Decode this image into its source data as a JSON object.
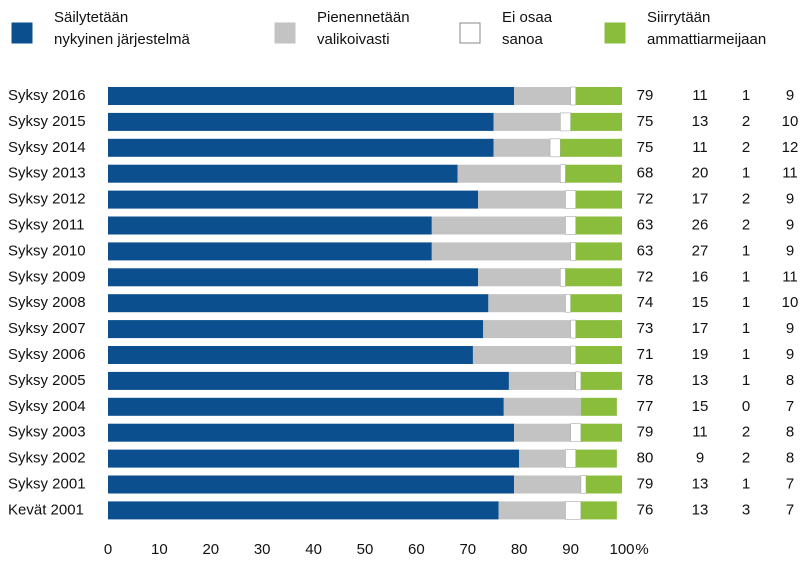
{
  "chart_data": {
    "type": "stacked_barh",
    "categories": [
      "Syksy 2016",
      "Syksy 2015",
      "Syksy 2014",
      "Syksy 2013",
      "Syksy 2012",
      "Syksy 2011",
      "Syksy 2010",
      "Syksy 2009",
      "Syksy 2008",
      "Syksy 2007",
      "Syksy 2006",
      "Syksy 2005",
      "Syksy 2004",
      "Syksy 2003",
      "Syksy 2002",
      "Syksy 2001",
      "Kevät 2001"
    ],
    "series": [
      {
        "name": [
          "Säilytetään",
          "nykyinen järjestelmä"
        ],
        "color": "#0b4f8e",
        "values": [
          79,
          75,
          75,
          68,
          72,
          63,
          63,
          72,
          74,
          73,
          71,
          78,
          77,
          79,
          80,
          79,
          76
        ]
      },
      {
        "name": [
          "Pienennetään",
          "valikoivasti"
        ],
        "color": "#c3c3c3",
        "values": [
          11,
          13,
          11,
          20,
          17,
          26,
          27,
          16,
          15,
          17,
          19,
          13,
          15,
          11,
          9,
          13,
          13
        ]
      },
      {
        "name": [
          "Ei osaa",
          "sanoa"
        ],
        "color": "#ffffff",
        "values": [
          1,
          2,
          2,
          1,
          2,
          2,
          1,
          1,
          1,
          1,
          1,
          1,
          0,
          2,
          2,
          1,
          3
        ]
      },
      {
        "name": [
          "Siirrytään",
          "ammattiarmeijaan"
        ],
        "color": "#8abd3b",
        "values": [
          9,
          10,
          12,
          11,
          9,
          9,
          9,
          11,
          10,
          9,
          9,
          8,
          7,
          8,
          8,
          7,
          7
        ]
      }
    ],
    "xlim": [
      0,
      100
    ],
    "xticks": [
      0,
      10,
      20,
      30,
      40,
      50,
      60,
      70,
      80,
      90,
      100
    ],
    "xunit": "%"
  }
}
